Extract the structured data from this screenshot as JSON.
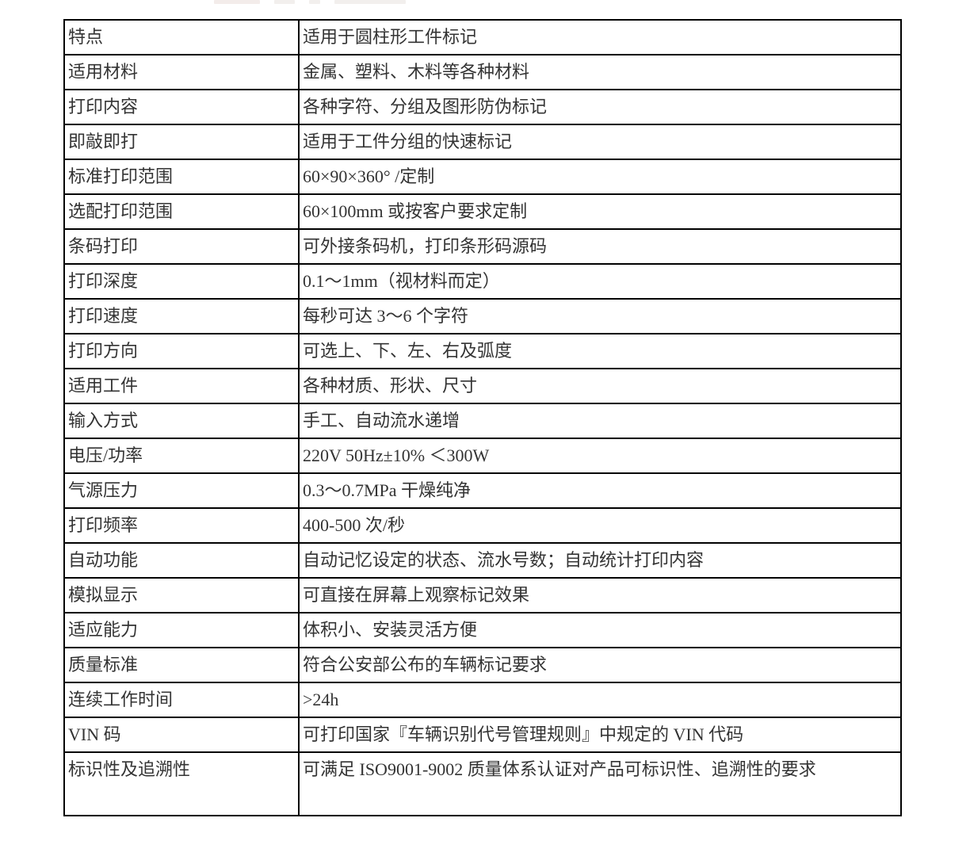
{
  "page": {
    "background_color": "#ffffff",
    "table_border_color": "#000000",
    "table_text_color": "#333333"
  },
  "spec_table": {
    "rows": [
      {
        "label": "特点",
        "value": "适用于圆柱形工件标记"
      },
      {
        "label": "适用材料",
        "value": "金属、塑料、木料等各种材料"
      },
      {
        "label": "打印内容",
        "value": "各种字符、分组及图形防伪标记"
      },
      {
        "label": "即敲即打",
        "value": "适用于工件分组的快速标记"
      },
      {
        "label": "标准打印范围",
        "value": "60×90×360° /定制"
      },
      {
        "label": "选配打印范围",
        "value": "60×100mm 或按客户要求定制"
      },
      {
        "label": "条码打印",
        "value": "可外接条码机，打印条形码源码"
      },
      {
        "label": "打印深度",
        "value": "0.1～1mm（视材料而定）"
      },
      {
        "label": "打印速度",
        "value": "每秒可达 3～6 个字符"
      },
      {
        "label": "打印方向",
        "value": "可选上、下、左、右及弧度"
      },
      {
        "label": "适用工件",
        "value": "各种材质、形状、尺寸"
      },
      {
        "label": "输入方式",
        "value": "手工、自动流水递增"
      },
      {
        "label": "电压/功率",
        "value": "220V  50Hz±10% ＜300W"
      },
      {
        "label": "气源压力",
        "value": "0.3～0.7MPa 干燥纯净"
      },
      {
        "label": "打印频率",
        "value": "400-500 次/秒"
      },
      {
        "label": "自动功能",
        "value": "自动记忆设定的状态、流水号数；自动统计打印内容"
      },
      {
        "label": "模拟显示",
        "value": "可直接在屏幕上观察标记效果"
      },
      {
        "label": "适应能力",
        "value": "体积小、安装灵活方便"
      },
      {
        "label": "质量标准",
        "value": "符合公安部公布的车辆标记要求"
      },
      {
        "label": "连续工作时间",
        "value": ">24h"
      },
      {
        "label": "VIN 码",
        "value": "可打印国家『车辆识别代号管理规则』中规定的 VIN 代码"
      },
      {
        "label": "标识性及追溯性",
        "value": "可满足 ISO9001-9002 质量体系认证对产品可标识性、追溯性的要求"
      }
    ]
  }
}
